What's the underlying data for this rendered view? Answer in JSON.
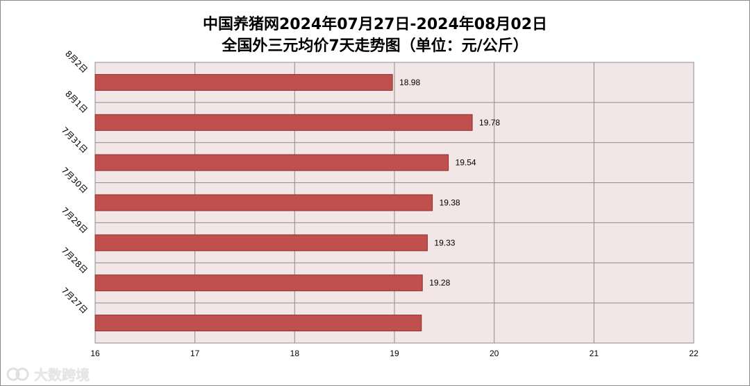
{
  "chart_data": {
    "type": "bar",
    "orientation": "horizontal",
    "title": "中国养猪网2024年07月27日-2024年08月02日",
    "subtitle": "全国外三元均价7天走势图（单位：元/公斤）",
    "categories": [
      "8月2日",
      "8月1日",
      "7月31日",
      "7月30日",
      "7月29日",
      "7月28日",
      "7月27日"
    ],
    "values": [
      18.98,
      19.78,
      19.54,
      19.38,
      19.33,
      19.28,
      19.27
    ],
    "data_labels": [
      "18.98",
      "19.78",
      "19.54",
      "19.38",
      "19.33",
      "19.28",
      ""
    ],
    "xlim": [
      16,
      22
    ],
    "xticks": [
      "16",
      "17",
      "18",
      "19",
      "20",
      "21",
      "22"
    ],
    "grid": true,
    "colors": {
      "bar": "#c0504d",
      "bar_border": "#8c2f2c",
      "plot_bg": "#f2e6e6",
      "grid": "#8c8c8c"
    }
  },
  "watermark": {
    "text": "大数跨境"
  }
}
